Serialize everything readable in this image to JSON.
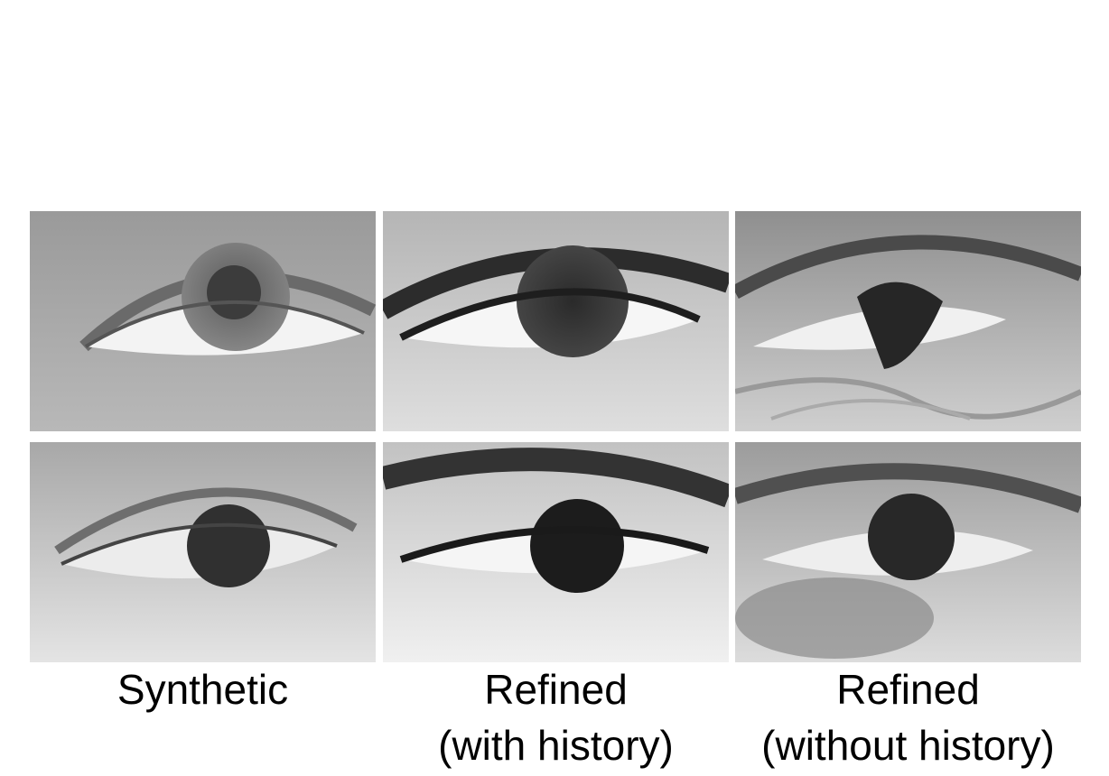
{
  "figure": {
    "columns": [
      {
        "caption_lines": [
          "Synthetic"
        ]
      },
      {
        "caption_lines": [
          "Refined",
          "(with history)"
        ]
      },
      {
        "caption_lines": [
          "Refined",
          "(without history)"
        ]
      }
    ],
    "rows": 2
  }
}
